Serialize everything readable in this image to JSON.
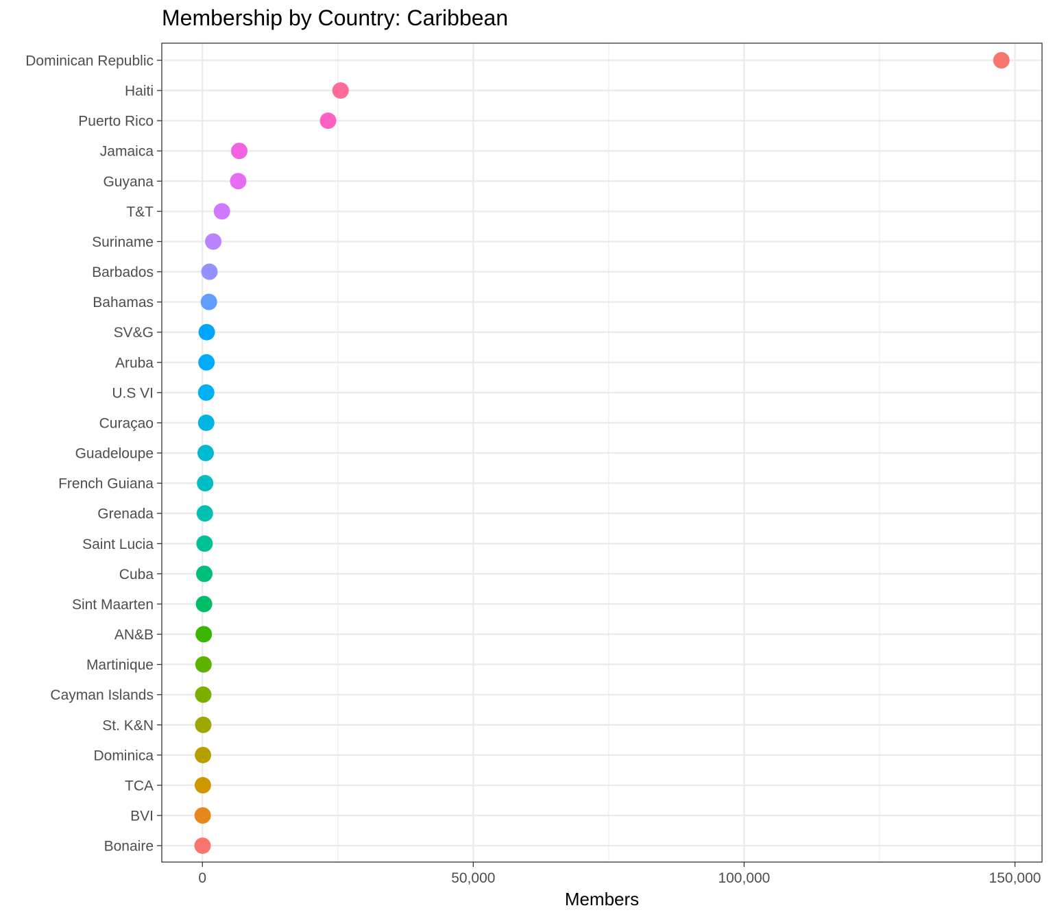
{
  "chart_data": {
    "type": "scatter",
    "title": "Membership by Country: Caribbean",
    "xlabel": "Members",
    "ylabel": "",
    "xlim": [
      -7500,
      155000
    ],
    "x_ticks": [
      0,
      50000,
      100000,
      150000
    ],
    "x_tick_labels": [
      "0",
      "50,000",
      "100,000",
      "150,000"
    ],
    "grid": true,
    "legend": "none",
    "categories": [
      "Dominican Republic",
      "Haiti",
      "Puerto Rico",
      "Jamaica",
      "Guyana",
      "T&T",
      "Suriname",
      "Barbados",
      "Bahamas",
      "SV&G",
      "Aruba",
      "U.S VI",
      "Curaçao",
      "Guadeloupe",
      "French Guiana",
      "Grenada",
      "Saint Lucia",
      "Cuba",
      "Sint Maarten",
      "AN&B",
      "Martinique",
      "Cayman Islands",
      "St. K&N",
      "Dominica",
      "TCA",
      "BVI",
      "Bonaire"
    ],
    "values": [
      147500,
      25500,
      23200,
      6800,
      6600,
      3600,
      2000,
      1300,
      1200,
      800,
      750,
      700,
      700,
      600,
      500,
      450,
      400,
      350,
      300,
      250,
      200,
      150,
      150,
      100,
      80,
      50,
      30
    ],
    "colors": [
      "#F8766D",
      "#FF6A98",
      "#FF61C3",
      "#F263E2",
      "#E76BF3",
      "#D078FF",
      "#B983FF",
      "#9590FF",
      "#619CFF",
      "#00A5FF",
      "#00ABFD",
      "#00B0F6",
      "#00B5E4",
      "#00BAD4",
      "#00BDC2",
      "#00C0AF",
      "#00C097",
      "#00BF7D",
      "#00BE67",
      "#39B600",
      "#5BB300",
      "#7CAE00",
      "#9DA700",
      "#B79F00",
      "#CE9700",
      "#E7861B",
      "#F8766D"
    ]
  }
}
